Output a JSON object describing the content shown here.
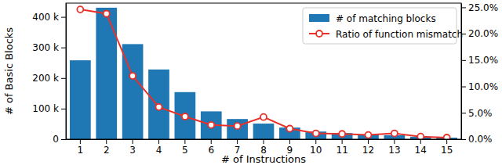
{
  "chart_data": {
    "type": "bar",
    "x_label": "# of Instructions",
    "y_label": "# of Basic Blocks",
    "categories": [
      "1",
      "2",
      "3",
      "4",
      "5",
      "6",
      "7",
      "8",
      "9",
      "10",
      "11",
      "12",
      "13",
      "14",
      "15"
    ],
    "series": [
      {
        "name": "# of matching blocks",
        "type": "bar",
        "color": "#1f77b4",
        "values": [
          258000,
          430000,
          311000,
          228000,
          154000,
          91000,
          66000,
          51000,
          38000,
          25000,
          20000,
          15000,
          13000,
          8000,
          5000
        ]
      },
      {
        "name": "Ratio of function mismatch",
        "type": "line",
        "color": "#e8312a",
        "marker": "circle",
        "axis": "y2",
        "values": [
          24.6,
          23.8,
          12.0,
          6.1,
          4.3,
          2.7,
          2.5,
          4.2,
          2.0,
          1.1,
          1.0,
          0.8,
          1.1,
          0.5,
          0.3
        ]
      }
    ],
    "ylim": [
      0,
      445000
    ],
    "yticks": [
      0,
      {
        "value": 100000,
        "label": "100 k"
      },
      {
        "value": 200000,
        "label": "200 k"
      },
      {
        "value": 300000,
        "label": "300 k"
      },
      {
        "value": 400000,
        "label": "400 k"
      }
    ],
    "y2lim": [
      0,
      25.8
    ],
    "y2ticks": [
      {
        "value": 0,
        "label": "0.0%"
      },
      {
        "value": 5,
        "label": "5.0%"
      },
      {
        "value": 10,
        "label": "10.0%"
      },
      {
        "value": 15,
        "label": "15.0%"
      },
      {
        "value": 20,
        "label": "20.0%"
      },
      {
        "value": 25,
        "label": "25.0%"
      }
    ],
    "legend": "upper right"
  }
}
